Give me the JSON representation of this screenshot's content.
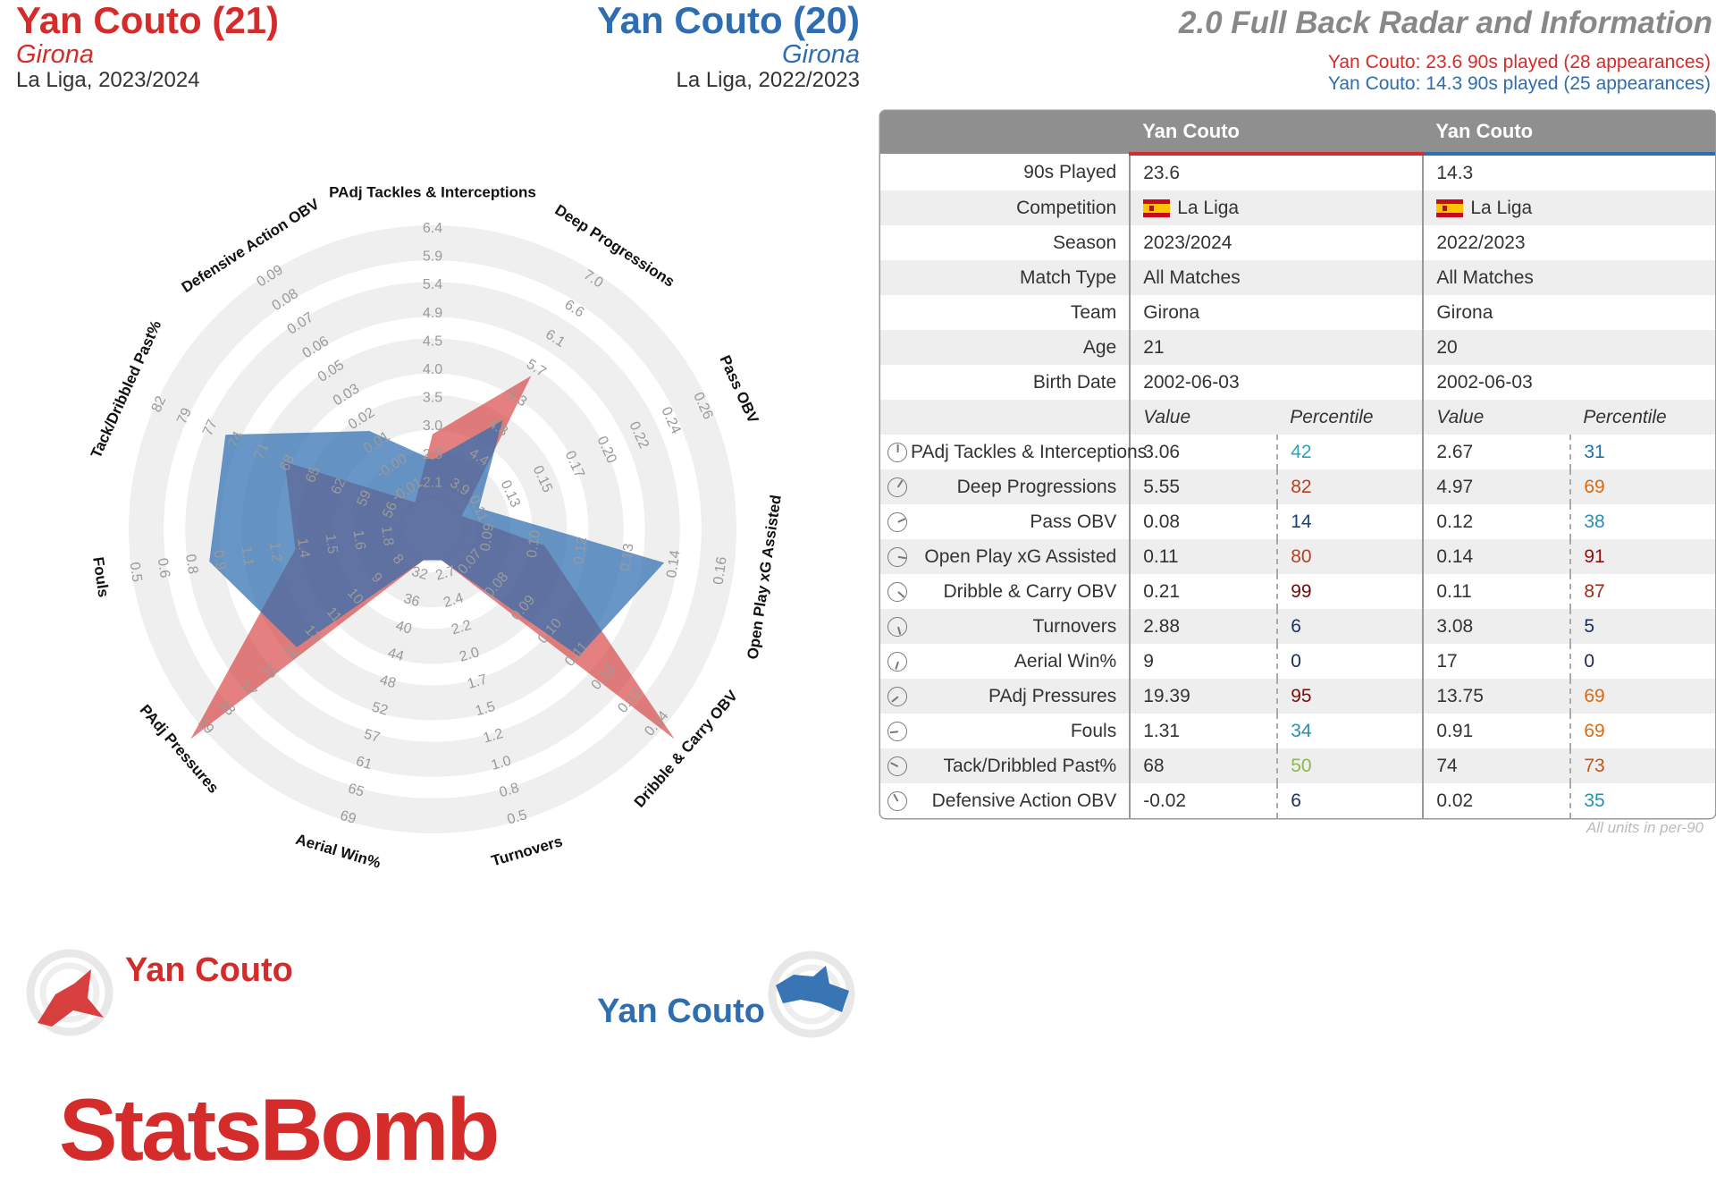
{
  "player1": {
    "name": "Yan Couto (21)",
    "team": "Girona",
    "competition": "La Liga, 2023/2024",
    "legend": "Yan Couto",
    "color": "#d42b2b"
  },
  "player2": {
    "name": "Yan Couto (20)",
    "team": "Girona",
    "competition": "La Liga, 2022/2023",
    "legend": "Yan Couto",
    "color": "#2e6db0"
  },
  "title": "2.0 Full Back Radar and Information",
  "played1": "Yan Couto: 23.6 90s played (28 appearances)",
  "played2": "Yan Couto: 14.3 90s played (25 appearances)",
  "table": {
    "col1": "Yan Couto",
    "col2": "Yan Couto",
    "info": [
      {
        "label": "90s Played",
        "v1": "23.6",
        "v2": "14.3"
      },
      {
        "label": "Competition",
        "v1": "La Liga",
        "v2": "La Liga",
        "flag": true
      },
      {
        "label": "Season",
        "v1": "2023/2024",
        "v2": "2022/2023"
      },
      {
        "label": "Match Type",
        "v1": "All Matches",
        "v2": "All Matches"
      },
      {
        "label": "Team",
        "v1": "Girona",
        "v2": "Girona"
      },
      {
        "label": "Age",
        "v1": "21",
        "v2": "20"
      },
      {
        "label": "Birth Date",
        "v1": "2002-06-03",
        "v2": "2002-06-03"
      }
    ],
    "value_header": "Value",
    "percentile_header": "Percentile",
    "metrics": [
      {
        "label": "PAdj Tackles & Interceptions",
        "v1": "3.06",
        "p1": "42",
        "c1": "#2aa3b8",
        "v2": "2.67",
        "p2": "31",
        "c2": "#1f6fa1"
      },
      {
        "label": "Deep Progressions",
        "v1": "5.55",
        "p1": "82",
        "c1": "#b8401e",
        "v2": "4.97",
        "p2": "69",
        "c2": "#d96a10"
      },
      {
        "label": "Pass OBV",
        "v1": "0.08",
        "p1": "14",
        "c1": "#1c3f80",
        "v2": "0.12",
        "p2": "38",
        "c2": "#2a8db0"
      },
      {
        "label": "Open Play xG Assisted",
        "v1": "0.11",
        "p1": "80",
        "c1": "#b8401e",
        "v2": "0.14",
        "p2": "91",
        "c2": "#8b1010"
      },
      {
        "label": "Dribble & Carry OBV",
        "v1": "0.21",
        "p1": "99",
        "c1": "#6b0a0a",
        "v2": "0.11",
        "p2": "87",
        "c2": "#9e2a1a"
      },
      {
        "label": "Turnovers",
        "v1": "2.88",
        "p1": "6",
        "c1": "#1a2f66",
        "v2": "3.08",
        "p2": "5",
        "c2": "#1a2f66"
      },
      {
        "label": "Aerial Win%",
        "v1": "9",
        "p1": "0",
        "c1": "#1a2a55",
        "v2": "17",
        "p2": "0",
        "c2": "#1a2a55"
      },
      {
        "label": "PAdj Pressures",
        "v1": "19.39",
        "p1": "95",
        "c1": "#7d0c0c",
        "v2": "13.75",
        "p2": "69",
        "c2": "#d96a10"
      },
      {
        "label": "Fouls",
        "v1": "1.31",
        "p1": "34",
        "c1": "#2690b0",
        "v2": "0.91",
        "p2": "69",
        "c2": "#d96a10"
      },
      {
        "label": "Tack/Dribbled Past%",
        "v1": "68",
        "p1": "50",
        "c1": "#8fb84a",
        "v2": "74",
        "p2": "73",
        "c2": "#c85412"
      },
      {
        "label": "Defensive Action OBV",
        "v1": "-0.02",
        "p1": "6",
        "c1": "#1a2f66",
        "v2": "0.02",
        "p2": "35",
        "c2": "#2690b0"
      }
    ]
  },
  "units_note": "All units in per-90",
  "logo": "StatsBomb",
  "chart_data": {
    "type": "radar",
    "axes": [
      {
        "label": "PAdj Tackles & Interceptions",
        "ticks": [
          "2.1",
          "2.5",
          "3.0",
          "3.5",
          "4.0",
          "4.5",
          "4.9",
          "5.4",
          "5.9",
          "6.4"
        ]
      },
      {
        "label": "Deep Progressions",
        "ticks": [
          "3.9",
          "4.4",
          "4.8",
          "5.3",
          "5.7",
          "6.1",
          "6.6",
          "7.0"
        ]
      },
      {
        "label": "Pass OBV",
        "ticks": [
          "0.11",
          "0.13",
          "0.15",
          "0.17",
          "0.20",
          "0.22",
          "0.24",
          "0.26"
        ]
      },
      {
        "label": "Open Play xG Assisted",
        "ticks": [
          "0.09",
          "0.10",
          "0.12",
          "0.13",
          "0.14",
          "0.16"
        ]
      },
      {
        "label": "Dribble & Carry OBV",
        "ticks": [
          "0.07",
          "0.08",
          "0.09",
          "0.10",
          "0.11",
          "0.12",
          "0.13",
          "0.14"
        ]
      },
      {
        "label": "Turnovers",
        "ticks": [
          "2.7",
          "2.4",
          "2.2",
          "2.0",
          "1.7",
          "1.5",
          "1.2",
          "1.0",
          "0.8",
          "0.5"
        ]
      },
      {
        "label": "Aerial Win%",
        "ticks": [
          "32",
          "36",
          "40",
          "44",
          "48",
          "52",
          "57",
          "61",
          "65",
          "69"
        ]
      },
      {
        "label": "PAdj Pressures",
        "ticks": [
          "8",
          "9",
          "10",
          "11",
          "13",
          "14",
          "15",
          "17",
          "18",
          "19"
        ]
      },
      {
        "label": "Fouls",
        "ticks": [
          "1.8",
          "1.6",
          "1.5",
          "1.4",
          "1.2",
          "1.1",
          "0.9",
          "0.8",
          "0.6",
          "0.5"
        ]
      },
      {
        "label": "Tack/Dribbled Past%",
        "ticks": [
          "56",
          "59",
          "62",
          "65",
          "68",
          "71",
          "74",
          "77",
          "79",
          "82"
        ]
      },
      {
        "label": "Defensive Action OBV",
        "ticks": [
          "-0.01",
          "-0.00",
          "0.01",
          "0.02",
          "0.03",
          "0.05",
          "0.06",
          "0.07",
          "0.08",
          "0.09"
        ]
      }
    ],
    "series": [
      {
        "name": "Yan Couto",
        "color": "#d42b2b",
        "values": [
          3.06,
          5.55,
          0.08,
          0.11,
          0.21,
          2.88,
          9,
          19.39,
          1.31,
          68,
          -0.02
        ]
      },
      {
        "name": "Yan Couto",
        "color": "#2e6db0",
        "values": [
          2.67,
          4.97,
          0.12,
          0.14,
          0.11,
          3.08,
          17,
          13.75,
          0.91,
          74,
          0.02
        ]
      }
    ]
  }
}
